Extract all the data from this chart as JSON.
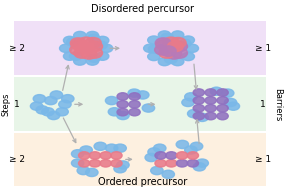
{
  "title_top": "Disordered percursor",
  "title_bottom": "Ordered precursor",
  "label_left": "Steps",
  "label_right": "Barriers",
  "row_labels_left": [
    "≥ 2",
    "1",
    "≥ 2"
  ],
  "row_labels_right": [
    "≥ 1",
    "1",
    "≥ 1"
  ],
  "row_colors": [
    "#f0e0f7",
    "#e8f5e8",
    "#fdf0e0"
  ],
  "bg_color": "#ffffff",
  "arrow_color": "#b0b0b0",
  "blue_sphere": "#7ab8e8",
  "pink_sphere": "#e87a8a",
  "purple_sphere": "#b87ab8",
  "pink_crystal": "#e87a8a",
  "purple_crystal": "#9070c0",
  "figw": 2.85,
  "figh": 1.89,
  "dpi": 100
}
